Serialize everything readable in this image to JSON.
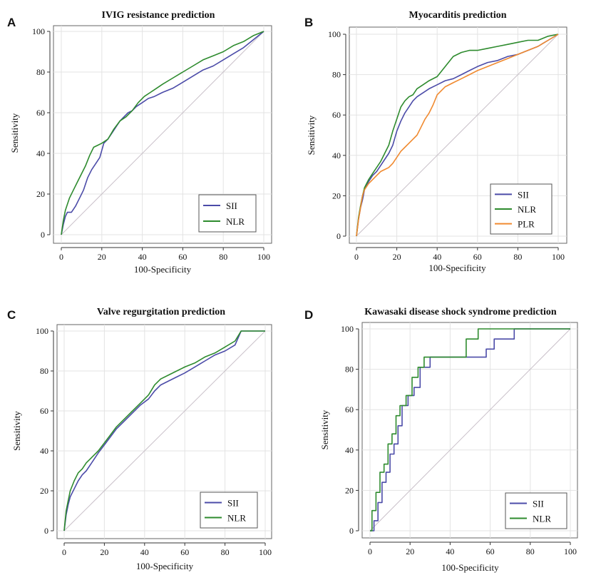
{
  "chart_data": [
    {
      "type": "line",
      "letter": "A",
      "title": "IVIG resistance prediction",
      "xlabel": "100-Specificity",
      "ylabel": "Sensitivity",
      "xlim": [
        0,
        100
      ],
      "ylim": [
        0,
        100
      ],
      "ticks": [
        0,
        20,
        40,
        60,
        80,
        100
      ],
      "ticks_labels": [
        "0",
        "20",
        "40",
        "60",
        "80",
        "100"
      ],
      "grid": true,
      "legend_position": "bottom-right",
      "series": [
        {
          "name": "SII",
          "color": "#4b4ba8",
          "x": [
            0,
            1,
            2,
            3,
            5,
            7,
            9,
            11,
            13,
            15,
            17,
            19,
            21,
            23,
            25,
            27,
            29,
            31,
            33,
            35,
            37,
            40,
            43,
            46,
            50,
            55,
            60,
            65,
            70,
            75,
            80,
            85,
            90,
            95,
            100
          ],
          "y": [
            0,
            5,
            9,
            11,
            11,
            14,
            18,
            22,
            28,
            32,
            35,
            38,
            45,
            47,
            50,
            53,
            56,
            58,
            60,
            61,
            63,
            65,
            67,
            68,
            70,
            72,
            75,
            78,
            81,
            83,
            86,
            89,
            92,
            96,
            100
          ]
        },
        {
          "name": "NLR",
          "color": "#2e8b2e",
          "x": [
            0,
            1,
            2,
            4,
            6,
            8,
            10,
            12,
            14,
            16,
            18,
            20,
            23,
            26,
            29,
            32,
            35,
            38,
            41,
            44,
            47,
            50,
            55,
            60,
            65,
            70,
            75,
            80,
            85,
            90,
            95,
            100
          ],
          "y": [
            0,
            7,
            12,
            18,
            22,
            26,
            30,
            34,
            39,
            43,
            44,
            45,
            47,
            52,
            56,
            58,
            61,
            65,
            68,
            70,
            72,
            74,
            77,
            80,
            83,
            86,
            88,
            90,
            93,
            95,
            98,
            100
          ]
        }
      ]
    },
    {
      "type": "line",
      "letter": "B",
      "title": "Myocarditis prediction",
      "xlabel": "100-Specificity",
      "ylabel": "Sensitivity",
      "xlim": [
        0,
        100
      ],
      "ylim": [
        0,
        100
      ],
      "ticks": [
        0,
        20,
        40,
        60,
        80,
        100
      ],
      "ticks_labels": [
        "0",
        "20",
        "40",
        "60",
        "80",
        "100"
      ],
      "grid": true,
      "legend_position": "bottom-right",
      "series": [
        {
          "name": "SII",
          "color": "#4b4ba8",
          "x": [
            0,
            1,
            2,
            3,
            4,
            6,
            8,
            10,
            12,
            14,
            16,
            18,
            20,
            22,
            24,
            26,
            28,
            30,
            33,
            36,
            40,
            44,
            48,
            52,
            56,
            60,
            65,
            70,
            75,
            80,
            85,
            90,
            95,
            100
          ],
          "y": [
            0,
            8,
            14,
            18,
            23,
            27,
            30,
            32,
            35,
            38,
            41,
            45,
            52,
            57,
            61,
            64,
            67,
            69,
            71,
            73,
            75,
            77,
            78,
            80,
            82,
            84,
            86,
            87,
            89,
            90,
            92,
            94,
            97,
            100
          ]
        },
        {
          "name": "NLR",
          "color": "#2e8b2e",
          "x": [
            0,
            1,
            2,
            3,
            4,
            6,
            8,
            10,
            12,
            14,
            16,
            18,
            20,
            22,
            24,
            26,
            28,
            30,
            33,
            36,
            40,
            44,
            48,
            52,
            56,
            60,
            65,
            70,
            75,
            80,
            85,
            90,
            95,
            100
          ],
          "y": [
            0,
            9,
            15,
            20,
            24,
            28,
            31,
            34,
            37,
            41,
            45,
            52,
            58,
            64,
            67,
            69,
            70,
            73,
            75,
            77,
            79,
            84,
            89,
            91,
            92,
            92,
            93,
            94,
            95,
            96,
            97,
            97,
            99,
            100
          ]
        },
        {
          "name": "PLR",
          "color": "#f08a30",
          "x": [
            0,
            1,
            2,
            3,
            4,
            6,
            8,
            10,
            12,
            14,
            16,
            18,
            20,
            22,
            24,
            26,
            28,
            30,
            32,
            34,
            36,
            38,
            40,
            44,
            48,
            52,
            56,
            60,
            65,
            70,
            75,
            80,
            85,
            90,
            95,
            100
          ],
          "y": [
            0,
            8,
            14,
            20,
            23,
            26,
            28,
            30,
            32,
            33,
            34,
            36,
            39,
            42,
            44,
            46,
            48,
            50,
            54,
            58,
            61,
            65,
            70,
            74,
            76,
            78,
            80,
            82,
            84,
            86,
            88,
            90,
            92,
            94,
            97,
            100
          ]
        }
      ]
    },
    {
      "type": "line",
      "letter": "C",
      "title": "Valve regurgitation prediction",
      "xlabel": "100-Specificity",
      "ylabel": "Sensitivity",
      "xlim": [
        0,
        100
      ],
      "ylim": [
        0,
        100
      ],
      "ticks": [
        0,
        20,
        40,
        60,
        80,
        100
      ],
      "ticks_labels": [
        "0",
        "20",
        "40",
        "60",
        "80",
        "100"
      ],
      "grid": true,
      "legend_position": "bottom-right",
      "series": [
        {
          "name": "SII",
          "color": "#4b4ba8",
          "x": [
            0,
            1,
            2,
            3,
            5,
            7,
            9,
            11,
            13,
            15,
            17,
            20,
            23,
            26,
            30,
            34,
            38,
            42,
            45,
            48,
            52,
            56,
            60,
            65,
            70,
            75,
            80,
            85,
            88,
            92,
            100
          ],
          "y": [
            0,
            8,
            13,
            17,
            21,
            25,
            28,
            30,
            33,
            36,
            39,
            43,
            47,
            51,
            55,
            59,
            63,
            66,
            70,
            73,
            75,
            77,
            79,
            82,
            85,
            88,
            90,
            93,
            100,
            100,
            100
          ]
        },
        {
          "name": "NLR",
          "color": "#2e8b2e",
          "x": [
            0,
            1,
            2,
            3,
            5,
            7,
            9,
            11,
            13,
            15,
            17,
            20,
            23,
            26,
            30,
            34,
            38,
            42,
            45,
            48,
            52,
            56,
            60,
            65,
            70,
            75,
            80,
            85,
            88,
            92,
            100
          ],
          "y": [
            0,
            10,
            15,
            20,
            25,
            29,
            31,
            34,
            36,
            38,
            40,
            44,
            48,
            52,
            56,
            60,
            64,
            68,
            73,
            76,
            78,
            80,
            82,
            84,
            87,
            89,
            92,
            95,
            100,
            100,
            100
          ]
        }
      ]
    },
    {
      "type": "line",
      "letter": "D",
      "title": "Kawasaki disease shock syndrome prediction",
      "xlabel": "100-Specificity",
      "ylabel": "Sensitivity",
      "xlim": [
        0,
        100
      ],
      "ylim": [
        0,
        100
      ],
      "ticks": [
        0,
        20,
        40,
        60,
        80,
        100
      ],
      "ticks_labels": [
        "0",
        "20",
        "40",
        "60",
        "80",
        "100"
      ],
      "grid": true,
      "legend_position": "bottom-right",
      "series": [
        {
          "name": "SII",
          "color": "#4b4ba8",
          "x": [
            0,
            2,
            2,
            4,
            4,
            6,
            6,
            8,
            8,
            10,
            10,
            12,
            12,
            14,
            14,
            16,
            16,
            19,
            19,
            22,
            22,
            25,
            25,
            30,
            30,
            36,
            36,
            58,
            58,
            62,
            62,
            72,
            72,
            100
          ],
          "y": [
            0,
            0,
            5,
            5,
            14,
            14,
            24,
            24,
            29,
            29,
            38,
            38,
            43,
            43,
            52,
            52,
            62,
            62,
            67,
            67,
            71,
            71,
            81,
            81,
            86,
            86,
            86,
            86,
            90,
            90,
            95,
            95,
            100,
            100
          ]
        },
        {
          "name": "NLR",
          "color": "#2e8b2e",
          "x": [
            0,
            1,
            1,
            3,
            3,
            5,
            5,
            7,
            7,
            9,
            9,
            11,
            11,
            13,
            13,
            15,
            15,
            18,
            18,
            21,
            21,
            24,
            24,
            27,
            27,
            36,
            36,
            48,
            48,
            54,
            54,
            100
          ],
          "y": [
            0,
            0,
            10,
            10,
            19,
            19,
            29,
            29,
            33,
            33,
            43,
            43,
            48,
            48,
            57,
            57,
            62,
            62,
            67,
            67,
            76,
            76,
            81,
            81,
            86,
            86,
            86,
            86,
            95,
            95,
            100,
            100
          ]
        }
      ]
    }
  ]
}
